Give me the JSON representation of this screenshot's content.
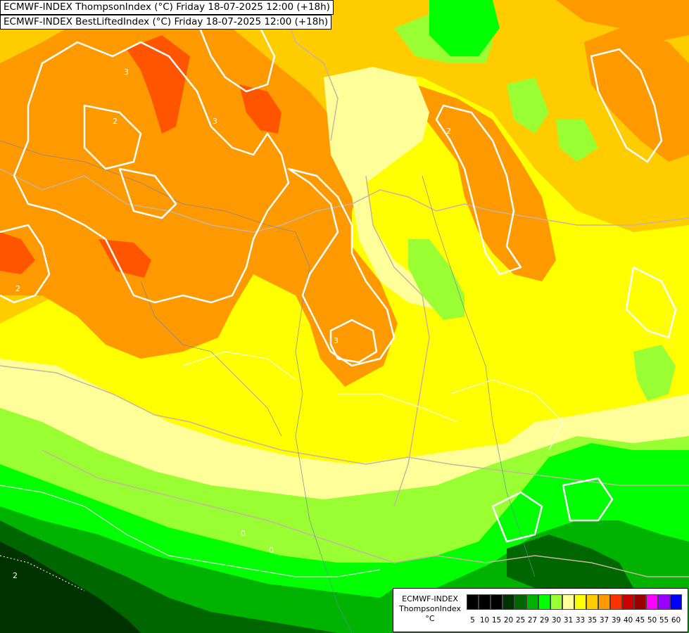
{
  "titles": [
    "ECMWF-INDEX ThompsonIndex (°C) Friday 18-07-2025 12:00 (+18h)",
    "ECMWF-INDEX BestLiftedIndex (°C) Friday 18-07-2025 12:00 (+18h)"
  ],
  "legend": {
    "line1": "ECMWF-INDEX",
    "line2": "ThompsonIndex",
    "line3": "°C",
    "swatches": [
      {
        "label": "5",
        "color": "#000000"
      },
      {
        "label": "10",
        "color": "#000000"
      },
      {
        "label": "15",
        "color": "#000000"
      },
      {
        "label": "20",
        "color": "#003300"
      },
      {
        "label": "25",
        "color": "#006600"
      },
      {
        "label": "27",
        "color": "#00b300"
      },
      {
        "label": "29",
        "color": "#00ff00"
      },
      {
        "label": "30",
        "color": "#99ff33"
      },
      {
        "label": "31",
        "color": "#ffff99"
      },
      {
        "label": "33",
        "color": "#ffff00"
      },
      {
        "label": "35",
        "color": "#ffcc00"
      },
      {
        "label": "37",
        "color": "#ff9900"
      },
      {
        "label": "39",
        "color": "#ff3300"
      },
      {
        "label": "40",
        "color": "#cc0000"
      },
      {
        "label": "45",
        "color": "#990000"
      },
      {
        "label": "50",
        "color": "#ff00ff"
      },
      {
        "label": "55",
        "color": "#9900ff"
      },
      {
        "label": "60",
        "color": "#0000ff"
      }
    ]
  },
  "contour_labels": [
    "3",
    "3",
    "2",
    "2",
    "3",
    "2",
    "0",
    "0",
    "2"
  ],
  "colors": {
    "yellow": "#ffff00",
    "light_yellow": "#ffff99",
    "light_green": "#99ff33",
    "green": "#00ff00",
    "mid_green": "#00b300",
    "dark_green": "#006600",
    "darkest_green": "#003300",
    "orange": "#ff9900",
    "deep_orange": "#ff6600",
    "red_orange": "#ff3300",
    "gold": "#ffcc00"
  }
}
